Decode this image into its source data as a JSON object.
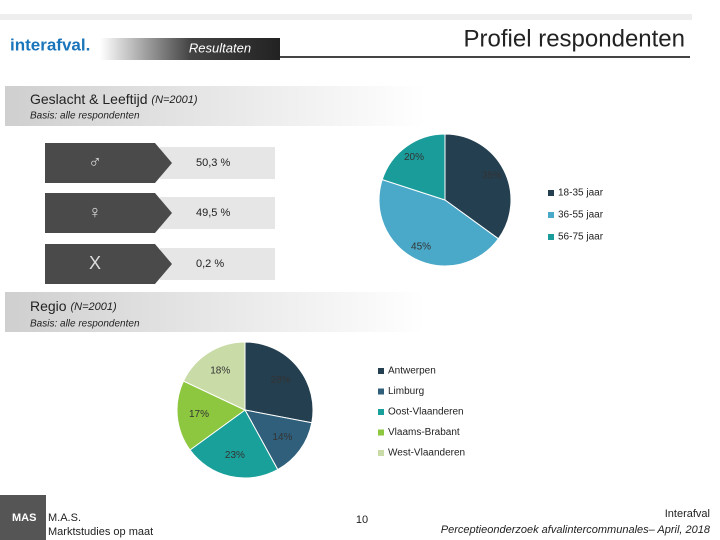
{
  "header": {
    "logo": "interafval.",
    "section": "Resultaten",
    "title": "Profiel respondenten"
  },
  "section1": {
    "title": "Geslacht & Leeftijd",
    "n": "(N=2001)",
    "basis": "Basis: alle respondenten"
  },
  "gender": [
    {
      "symbol": "♂",
      "share": "50,3 %"
    },
    {
      "symbol": "♀",
      "share": "49,5 %"
    },
    {
      "symbol": "X",
      "share": "0,2 %"
    }
  ],
  "section2": {
    "title": "Regio",
    "n": "(N=2001)",
    "basis": "Basis: alle respondenten"
  },
  "chart_data": [
    {
      "type": "pie",
      "categories": [
        "18-35 jaar",
        "36-55 jaar",
        "56-75 jaar"
      ],
      "values": [
        35,
        45,
        20
      ],
      "value_labels": [
        "35%",
        "45%",
        "20%"
      ],
      "colors": [
        "#243f50",
        "#4aa8c8",
        "#1a9c9a"
      ]
    },
    {
      "type": "pie",
      "categories": [
        "Antwerpen",
        "Limburg",
        "Oost-Vlaanderen",
        "Vlaams-Brabant",
        "West-Vlaanderen"
      ],
      "values": [
        28,
        14,
        23,
        17,
        18
      ],
      "value_labels": [
        "28%",
        "14%",
        "23%",
        "17%",
        "18%"
      ],
      "colors": [
        "#243f50",
        "#2f5f7a",
        "#1aa09a",
        "#8dc63f",
        "#c9dba6"
      ]
    }
  ],
  "footer": {
    "logo": "MAS",
    "company": "M.A.S.",
    "tagline": "Marktstudies op maat",
    "page": "10",
    "client": "Interafval",
    "study": "Perceptieonderzoek afvalintercommunales– April, 2018"
  }
}
